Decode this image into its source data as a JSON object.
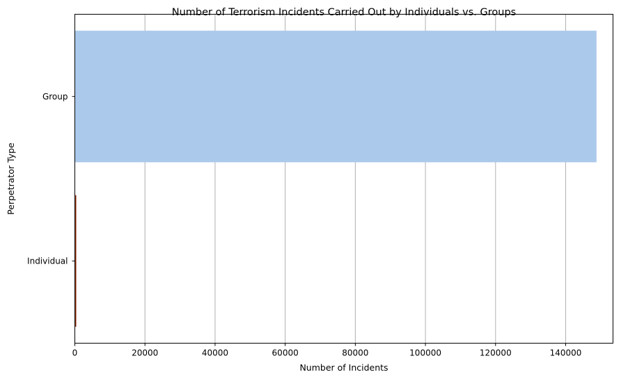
{
  "chart_data": {
    "type": "bar",
    "orientation": "horizontal",
    "title": "Number of Terrorism Incidents Carried Out by Individuals vs. Groups",
    "xlabel": "Number of Incidents",
    "ylabel": "Perpetrator Type",
    "categories": [
      "Group",
      "Individual"
    ],
    "values": [
      148800,
      400
    ],
    "colors": [
      "#abc9eb",
      "#8b2d0e"
    ],
    "xlim": [
      0,
      153500
    ],
    "xticks": [
      0,
      20000,
      40000,
      60000,
      80000,
      100000,
      120000,
      140000
    ],
    "grid": "x"
  }
}
